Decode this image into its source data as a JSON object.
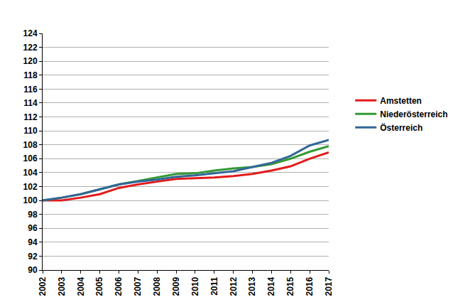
{
  "chart_data": {
    "type": "line",
    "categories": [
      "2002",
      "2003",
      "2004",
      "2005",
      "2006",
      "2007",
      "2008",
      "2009",
      "2010",
      "2011",
      "2012",
      "2013",
      "2014",
      "2015",
      "2016",
      "2017"
    ],
    "series": [
      {
        "name": "Amstetten",
        "color": "#e31a1c",
        "values": [
          100,
          100.0,
          100.4,
          100.9,
          101.8,
          102.3,
          102.7,
          103.1,
          103.2,
          103.3,
          103.5,
          103.8,
          104.3,
          104.9,
          106.0,
          106.9
        ]
      },
      {
        "name": "Niederösterreich",
        "color": "#339933",
        "values": [
          100,
          100.4,
          100.9,
          101.6,
          102.3,
          102.8,
          103.3,
          103.8,
          103.9,
          104.3,
          104.6,
          104.8,
          105.2,
          106.0,
          107.0,
          107.8
        ]
      },
      {
        "name": "Österreich",
        "color": "#336699",
        "values": [
          100,
          100.4,
          100.9,
          101.6,
          102.3,
          102.7,
          103.0,
          103.4,
          103.6,
          103.9,
          104.2,
          104.8,
          105.4,
          106.4,
          107.9,
          108.7
        ]
      }
    ],
    "ylim": [
      90,
      124
    ],
    "yticks": [
      90,
      92,
      94,
      96,
      98,
      100,
      102,
      104,
      106,
      108,
      110,
      112,
      114,
      116,
      118,
      120,
      122,
      124
    ],
    "grid": true,
    "legend": "right"
  }
}
